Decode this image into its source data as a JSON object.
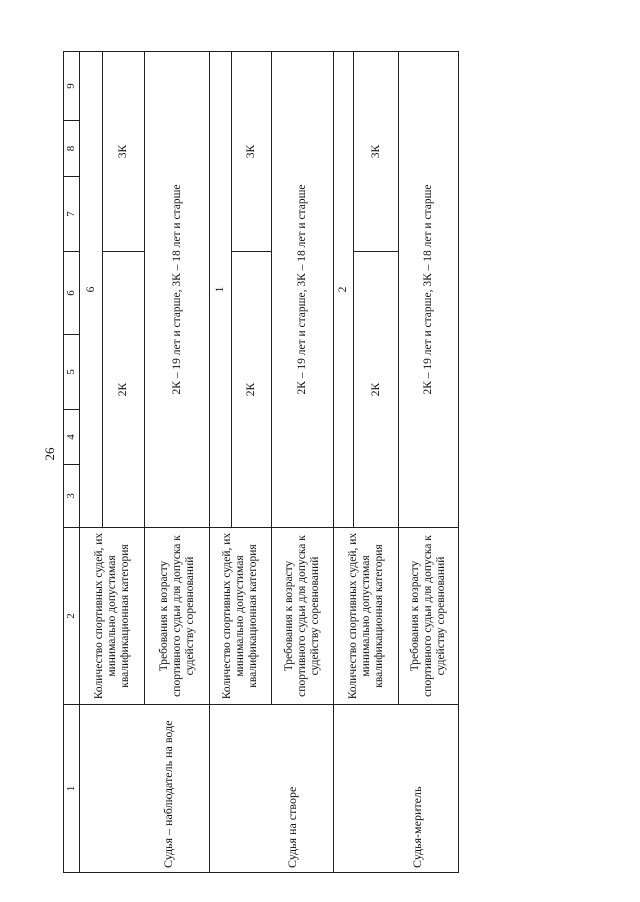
{
  "page_number": "26",
  "table": {
    "column_numbers": [
      "1",
      "2",
      "3",
      "4",
      "5",
      "6",
      "7",
      "8",
      "9"
    ],
    "rows": [
      {
        "role": "Судья – наблюдатель на воде",
        "count_label": "Количество спортивных судей, их минимально допустимая квалификационная категория",
        "count": "6",
        "category_a": "2К",
        "category_b": "3К",
        "age_label": "Требования к возрасту спортивного судьи для допуска к судейству соревнований",
        "age_value": "2К – 19 лет и старше, 3К – 18 лет и старше"
      },
      {
        "role": "Судья на створе",
        "count_label": "Количество спортивных судей, их минимально допустимая квалификационная категория",
        "count": "1",
        "category_a": "2К",
        "category_b": "3К",
        "age_label": "Требования к возрасту спортивного судьи для допуска к судейству соревнований",
        "age_value": "2К – 19 лет и старше, 3К – 18 лет и старше"
      },
      {
        "role": "Судья-меритель",
        "count_label": "Количество спортивных судей, их минимально допустимая квалификационная категория",
        "count": "2",
        "category_a": "2К",
        "category_b": "3К",
        "age_label": "Требования к возрасту спортивного судьи для допуска к судейству соревнований",
        "age_value": "2К – 19 лет и старше, 3К – 18 лет и старше"
      }
    ]
  }
}
